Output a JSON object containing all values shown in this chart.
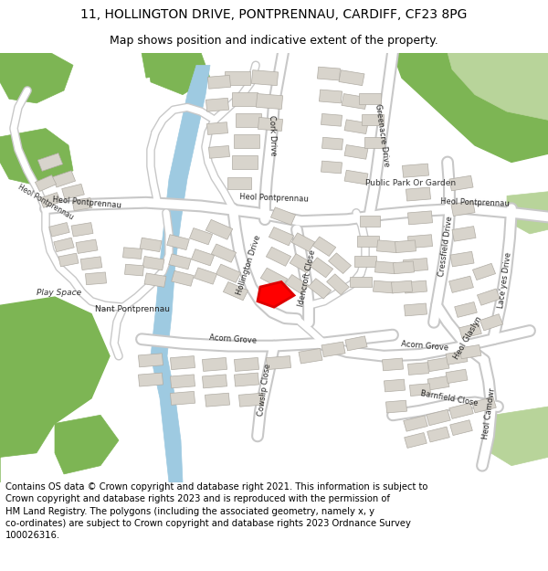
{
  "title_line1": "11, HOLLINGTON DRIVE, PONTPRENNAU, CARDIFF, CF23 8PG",
  "title_line2": "Map shows position and indicative extent of the property.",
  "copyright_text": "Contains OS data © Crown copyright and database right 2021. This information is subject to\nCrown copyright and database rights 2023 and is reproduced with the permission of\nHM Land Registry. The polygons (including the associated geometry, namely x, y\nco-ordinates) are subject to Crown copyright and database rights 2023 Ordnance Survey\n100026316.",
  "bg_color": "#f0eeea",
  "road_color": "#ffffff",
  "road_outline_color": "#c8c8c8",
  "building_color": "#d8d4cc",
  "building_outline": "#b0aca4",
  "green_color": "#7db554",
  "green_light": "#b8d49a",
  "water_color": "#9ecae1",
  "highlight_color": "#dd0000",
  "title_fontsize": 10,
  "subtitle_fontsize": 9,
  "copyright_fontsize": 7.2
}
